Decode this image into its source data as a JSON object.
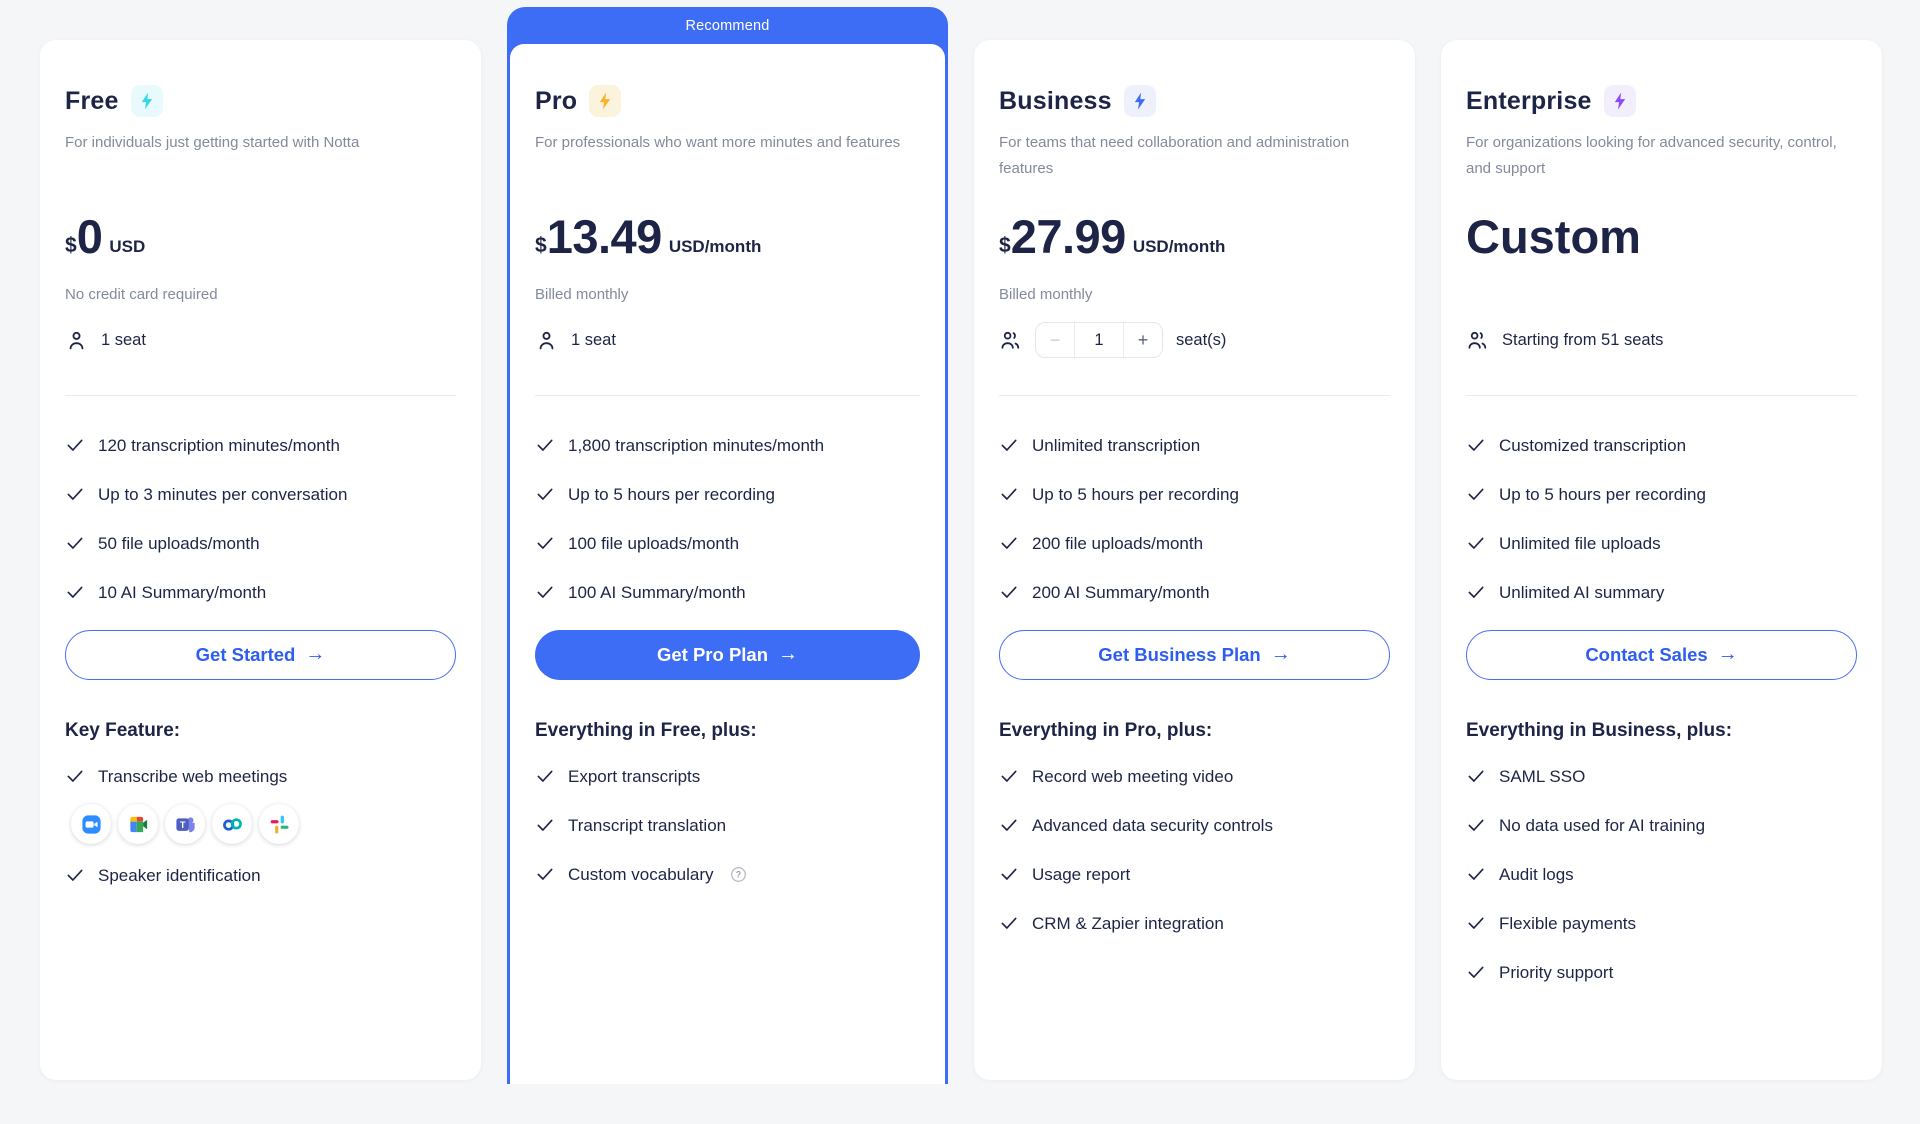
{
  "page": {
    "accent": "#3D6DF5",
    "background": "#F5F6F8"
  },
  "cards": [
    {
      "title": "Free",
      "badge": null,
      "colors": {
        "bolt": "#35D6E8",
        "bolt_bg": "#E9FAFC"
      },
      "description": "For individuals just getting started with Notta",
      "price": {
        "currency": "$",
        "amount": "0",
        "unit": "USD"
      },
      "note": "No credit card required",
      "seat": {
        "icon": "person",
        "label": "1 seat"
      },
      "features": [
        "120 transcription minutes/month",
        "Up to 3 minutes per conversation",
        "50 file uploads/month",
        "10 AI Summary/month"
      ],
      "button": {
        "label": "Get Started",
        "variant": "outline"
      },
      "section": {
        "heading": "Key Feature:",
        "items": [
          {
            "label": "Transcribe web meetings",
            "apps": [
              "zoom",
              "google-meet",
              "microsoft-teams",
              "webex",
              "slack"
            ]
          },
          {
            "label": "Speaker identification"
          }
        ]
      }
    },
    {
      "title": "Pro",
      "badge": "Recommend",
      "colors": {
        "bolt": "#F7B32B",
        "bolt_bg": "#FCF3DC"
      },
      "description": "For professionals who want more minutes and features",
      "price": {
        "currency": "$",
        "amount": "13.49",
        "unit": "USD/month"
      },
      "note": "Billed monthly",
      "seat": {
        "icon": "person",
        "label": "1 seat"
      },
      "features": [
        "1,800 transcription minutes/month",
        "Up to 5 hours per recording",
        "100 file uploads/month",
        "100 AI Summary/month"
      ],
      "button": {
        "label": "Get Pro Plan",
        "variant": "filled"
      },
      "section": {
        "heading": "Everything in Free, plus:",
        "items": [
          {
            "label": "Export transcripts"
          },
          {
            "label": "Transcript translation"
          },
          {
            "label": "Custom vocabulary",
            "help": true
          }
        ]
      }
    },
    {
      "title": "Business",
      "badge": null,
      "colors": {
        "bolt": "#3D6DF5",
        "bolt_bg": "#EEF1FC"
      },
      "description": "For teams that need collaboration and administration features",
      "price": {
        "currency": "$",
        "amount": "27.99",
        "unit": "USD/month"
      },
      "note": "Billed monthly",
      "seat": {
        "icon": "people",
        "label": "seat(s)",
        "stepper": {
          "minus": "−",
          "value": "1",
          "plus": "+"
        }
      },
      "features": [
        "Unlimited transcription",
        "Up to 5 hours per recording",
        "200 file uploads/month",
        "200 AI Summary/month"
      ],
      "button": {
        "label": "Get Business Plan",
        "variant": "outline"
      },
      "section": {
        "heading": "Everything in Pro, plus:",
        "items": [
          {
            "label": "Record web meeting video"
          },
          {
            "label": "Advanced data security controls"
          },
          {
            "label": "Usage report"
          },
          {
            "label": "CRM & Zapier integration"
          }
        ]
      }
    },
    {
      "title": "Enterprise",
      "badge": null,
      "colors": {
        "bolt": "#8C4BF6",
        "bolt_bg": "#F3EEFC"
      },
      "description": "For organizations looking for advanced security, control, and support",
      "price": {
        "custom": "Custom"
      },
      "note": "",
      "seat": {
        "icon": "people",
        "label": "Starting from 51 seats"
      },
      "features": [
        "Customized transcription",
        "Up to 5 hours per recording",
        "Unlimited file uploads",
        "Unlimited AI summary"
      ],
      "button": {
        "label": "Contact Sales",
        "variant": "outline"
      },
      "section": {
        "heading": "Everything in Business, plus:",
        "items": [
          {
            "label": "SAML SSO"
          },
          {
            "label": "No data used for AI training"
          },
          {
            "label": "Audit logs"
          },
          {
            "label": "Flexible payments"
          },
          {
            "label": "Priority support"
          }
        ]
      }
    }
  ]
}
